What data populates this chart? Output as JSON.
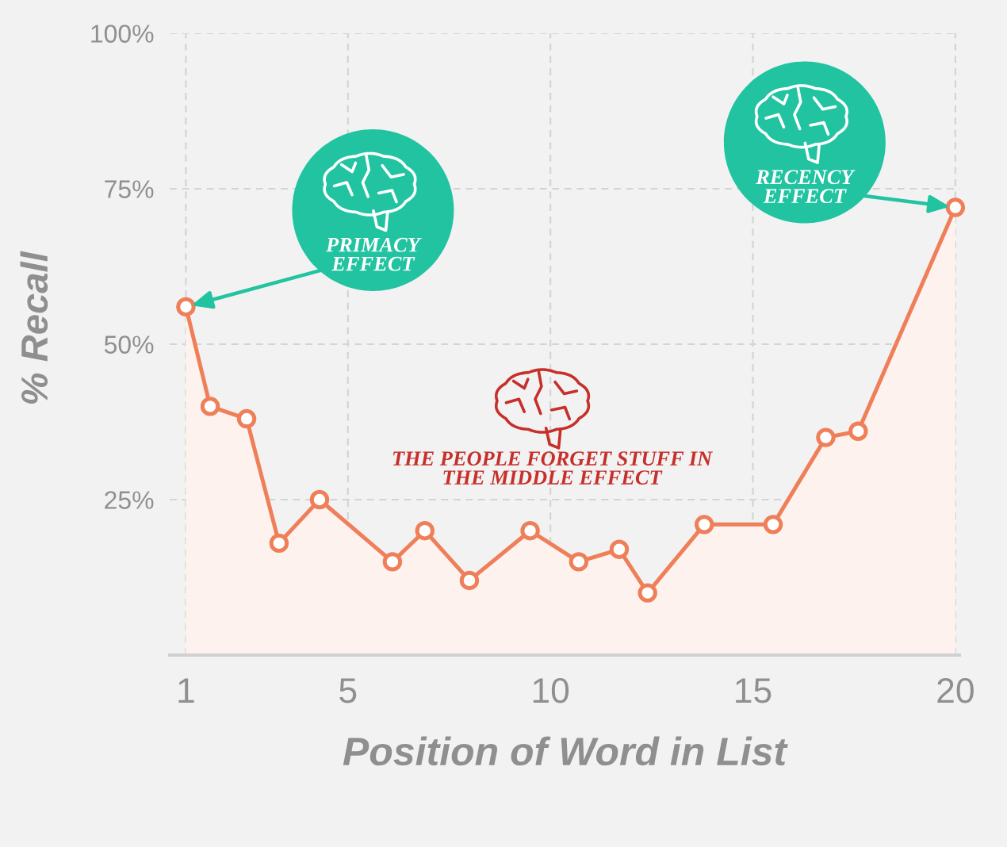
{
  "chart_data": {
    "type": "area",
    "xlabel": "Position of Word in List",
    "ylabel": "% Recall",
    "x": [
      1,
      1.6,
      2.5,
      3.3,
      4.3,
      6.1,
      6.9,
      8.0,
      9.5,
      10.7,
      11.7,
      12.4,
      13.8,
      15.5,
      16.8,
      17.6,
      20
    ],
    "series": [
      {
        "color": "#ef7f59",
        "values": [
          56,
          40,
          38,
          18,
          25,
          15,
          20,
          12,
          20,
          15,
          17,
          10,
          21,
          21,
          35,
          36,
          72
        ]
      }
    ],
    "xlim": [
      0.6,
      20.1
    ],
    "ylim": [
      0,
      100
    ],
    "xticks": [
      1,
      5,
      10,
      15,
      20
    ],
    "yticks": [
      {
        "value": 25,
        "label": "25%"
      },
      {
        "value": 50,
        "label": "50%"
      },
      {
        "value": 75,
        "label": "75%"
      },
      {
        "value": 100,
        "label": "100%"
      }
    ],
    "grid": true,
    "marker": "circle",
    "annotations": [
      {
        "text": "PRIMACY\nEFFECT",
        "x": 1,
        "y": 56
      },
      "THE PEOPLE FORGET STUFF IN\nTHE MIDDLE EFFECT",
      {
        "text": "RECENCY\nEFFECT",
        "x": 20,
        "y": 72
      }
    ]
  }
}
